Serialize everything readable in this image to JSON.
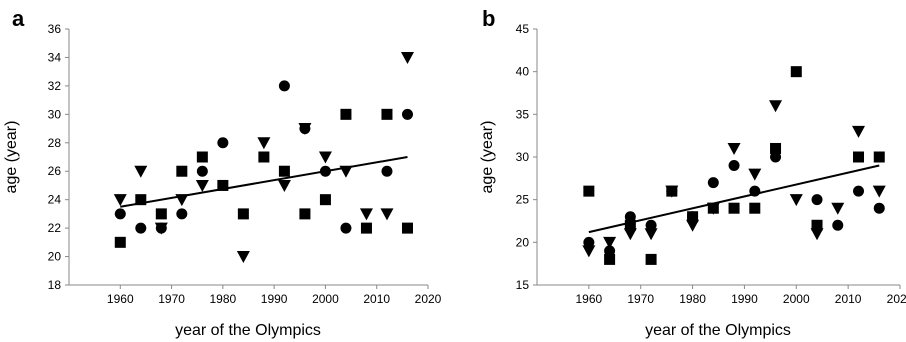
{
  "chart_data": [
    {
      "type": "scatter",
      "panel_label": "a",
      "xlabel": "year of the Olympics",
      "ylabel": "age (year)",
      "xlim": [
        1950,
        2020
      ],
      "ylim": [
        18,
        36
      ],
      "xticks": [
        "1960",
        "1970",
        "1980",
        "1990",
        "2000",
        "2010",
        "2020"
      ],
      "yticks": [
        "18",
        "20",
        "22",
        "24",
        "26",
        "28",
        "30",
        "32",
        "34",
        "36"
      ],
      "grid": false,
      "legend": "none",
      "series": [
        {
          "marker": "square",
          "points": [
            [
              1960,
              21
            ],
            [
              1964,
              24
            ],
            [
              1968,
              23
            ],
            [
              1972,
              26
            ],
            [
              1976,
              27
            ],
            [
              1980,
              25
            ],
            [
              1984,
              23
            ],
            [
              1988,
              27
            ],
            [
              1992,
              26
            ],
            [
              1996,
              23
            ],
            [
              2000,
              24
            ],
            [
              2004,
              30
            ],
            [
              2008,
              22
            ],
            [
              2012,
              30
            ],
            [
              2016,
              22
            ]
          ]
        },
        {
          "marker": "circle",
          "points": [
            [
              1960,
              23
            ],
            [
              1964,
              22
            ],
            [
              1968,
              22
            ],
            [
              1972,
              23
            ],
            [
              1976,
              26
            ],
            [
              1980,
              28
            ],
            [
              1992,
              32
            ],
            [
              1996,
              29
            ],
            [
              2000,
              26
            ],
            [
              2004,
              22
            ],
            [
              2012,
              26
            ],
            [
              2016,
              30
            ]
          ]
        },
        {
          "marker": "triangle-down",
          "points": [
            [
              1960,
              24
            ],
            [
              1964,
              26
            ],
            [
              1968,
              22
            ],
            [
              1972,
              24
            ],
            [
              1976,
              25
            ],
            [
              1984,
              20
            ],
            [
              1988,
              28
            ],
            [
              1992,
              25
            ],
            [
              1996,
              29
            ],
            [
              2000,
              27
            ],
            [
              2004,
              26
            ],
            [
              2008,
              23
            ],
            [
              2012,
              23
            ],
            [
              2016,
              34
            ]
          ]
        }
      ],
      "trendline": {
        "x": [
          1960,
          2016
        ],
        "y": [
          23.5,
          27.0
        ]
      }
    },
    {
      "type": "scatter",
      "panel_label": "b",
      "xlabel": "year of the Olympics",
      "ylabel": "age (year)",
      "xlim": [
        1950,
        2020
      ],
      "ylim": [
        15,
        45
      ],
      "xticks": [
        "1960",
        "1970",
        "1980",
        "1990",
        "2000",
        "2010",
        "2020"
      ],
      "yticks": [
        "15",
        "20",
        "25",
        "30",
        "35",
        "40",
        "45"
      ],
      "grid": false,
      "legend": "none",
      "series": [
        {
          "marker": "square",
          "points": [
            [
              1960,
              26
            ],
            [
              1964,
              18
            ],
            [
              1968,
              22
            ],
            [
              1972,
              18
            ],
            [
              1976,
              26
            ],
            [
              1980,
              23
            ],
            [
              1984,
              24
            ],
            [
              1988,
              24
            ],
            [
              1992,
              24
            ],
            [
              1996,
              31
            ],
            [
              2000,
              40
            ],
            [
              2004,
              22
            ],
            [
              2012,
              30
            ],
            [
              2016,
              30
            ]
          ]
        },
        {
          "marker": "circle",
          "points": [
            [
              1960,
              20
            ],
            [
              1964,
              19
            ],
            [
              1968,
              23
            ],
            [
              1972,
              22
            ],
            [
              1976,
              26
            ],
            [
              1980,
              23
            ],
            [
              1984,
              27
            ],
            [
              1988,
              29
            ],
            [
              1992,
              26
            ],
            [
              1996,
              30
            ],
            [
              2004,
              25
            ],
            [
              2008,
              22
            ],
            [
              2012,
              26
            ],
            [
              2016,
              24
            ]
          ]
        },
        {
          "marker": "triangle-down",
          "points": [
            [
              1960,
              19
            ],
            [
              1964,
              20
            ],
            [
              1968,
              21
            ],
            [
              1972,
              21
            ],
            [
              1976,
              26
            ],
            [
              1980,
              22
            ],
            [
              1984,
              24
            ],
            [
              1988,
              31
            ],
            [
              1992,
              28
            ],
            [
              1996,
              36
            ],
            [
              2000,
              25
            ],
            [
              2004,
              21
            ],
            [
              2008,
              24
            ],
            [
              2012,
              33
            ],
            [
              2016,
              26
            ]
          ]
        }
      ],
      "trendline": {
        "x": [
          1960,
          2016
        ],
        "y": [
          21.2,
          29.0
        ]
      }
    }
  ]
}
